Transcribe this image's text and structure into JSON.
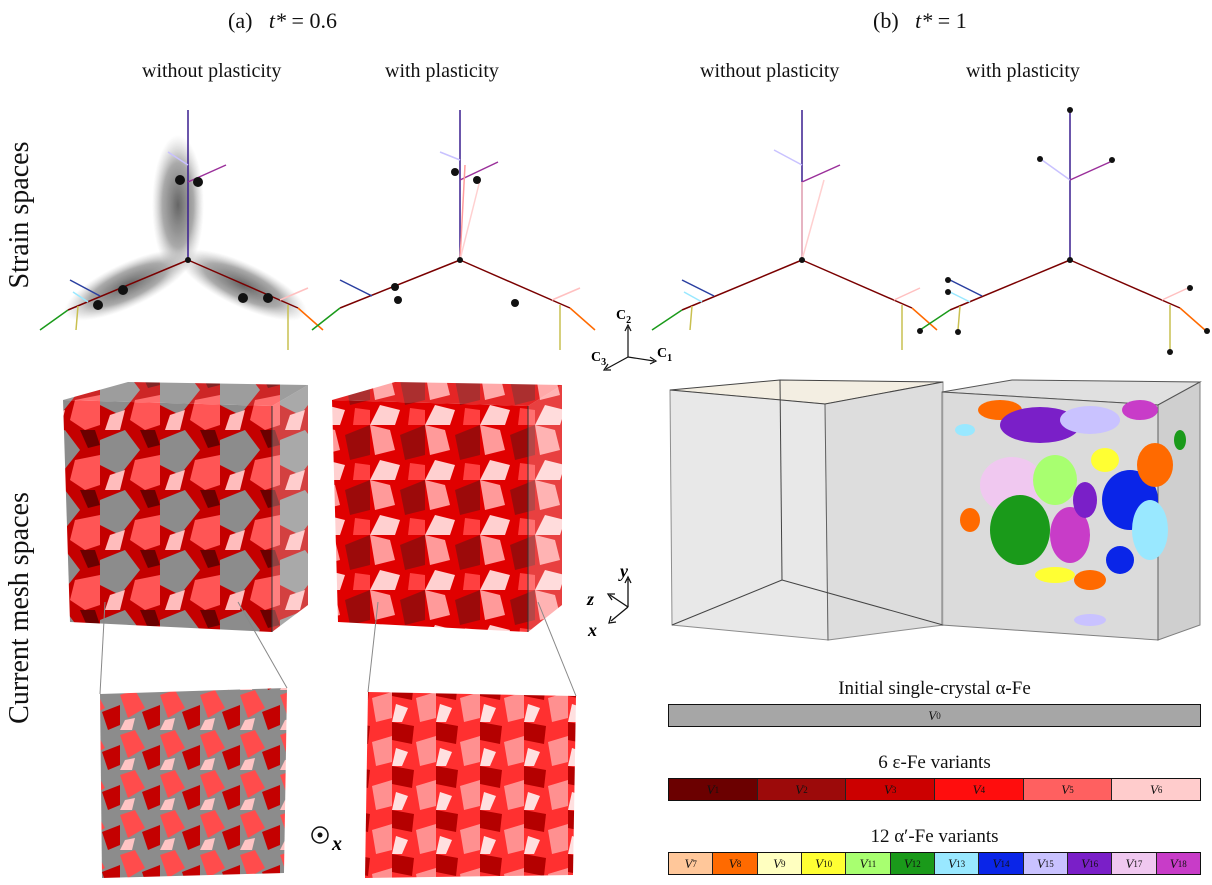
{
  "header": {
    "a_label": "(a)",
    "a_t": "t*",
    "a_eq": " = 0.6",
    "b_label": "(b)",
    "b_t": "t*",
    "b_eq": " = 1"
  },
  "columns": {
    "col1": "without plasticity",
    "col2": "with plasticity",
    "col3": "without plasticity",
    "col4": "with plasticity"
  },
  "rows": {
    "strain": "Strain spaces",
    "mesh": "Current mesh spaces"
  },
  "axes": {
    "c2": "C",
    "c2_sub": "2",
    "c3": "C",
    "c3_sub": "3",
    "c1": "C",
    "c1_sub": "1",
    "y": "y",
    "z": "z",
    "x": "x",
    "odot_x": "x"
  },
  "legend": {
    "initial": {
      "title": "Initial single-crystal α-Fe",
      "cells": [
        {
          "sym": "V",
          "idx": "0",
          "color": "#a6a6a6"
        }
      ]
    },
    "eps": {
      "title": "6 ε-Fe variants",
      "cells": [
        {
          "sym": "V",
          "idx": "1",
          "color": "#6b0000"
        },
        {
          "sym": "V",
          "idx": "2",
          "color": "#9c0a0a"
        },
        {
          "sym": "V",
          "idx": "3",
          "color": "#cc0000"
        },
        {
          "sym": "V",
          "idx": "4",
          "color": "#ff0d0d"
        },
        {
          "sym": "V",
          "idx": "5",
          "color": "#ff6060"
        },
        {
          "sym": "V",
          "idx": "6",
          "color": "#ffcccc"
        }
      ]
    },
    "alpha": {
      "title": "12 α′-Fe variants",
      "cells": [
        {
          "sym": "V",
          "idx": "7",
          "color": "#ffc79a"
        },
        {
          "sym": "V",
          "idx": "8",
          "color": "#ff6a00"
        },
        {
          "sym": "V",
          "idx": "9",
          "color": "#ffffc0"
        },
        {
          "sym": "V",
          "idx": "10",
          "color": "#ffff33"
        },
        {
          "sym": "V",
          "idx": "11",
          "color": "#a8ff70"
        },
        {
          "sym": "V",
          "idx": "12",
          "color": "#1a9a1a"
        },
        {
          "sym": "V",
          "idx": "13",
          "color": "#99e8ff"
        },
        {
          "sym": "V",
          "idx": "14",
          "color": "#0a25e8"
        },
        {
          "sym": "V",
          "idx": "15",
          "color": "#c9c2ff"
        },
        {
          "sym": "V",
          "idx": "16",
          "color": "#7a1fc8"
        },
        {
          "sym": "V",
          "idx": "17",
          "color": "#f0c8f0"
        },
        {
          "sym": "V",
          "idx": "18",
          "color": "#c83cc8"
        }
      ]
    }
  }
}
